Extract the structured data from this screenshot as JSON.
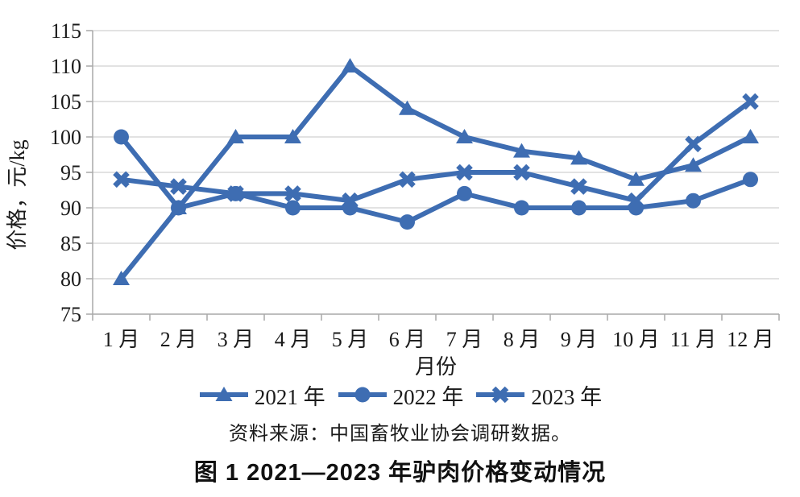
{
  "figure": {
    "caption": "图 1  2021—2023 年驴肉价格变动情况",
    "source_note": "资料来源：中国畜牧业协会调研数据。"
  },
  "chart_data": {
    "type": "line",
    "title": "",
    "xlabel": "月份",
    "ylabel": "价格，元/kg",
    "ylim": [
      75,
      115
    ],
    "ytick_step": 5,
    "grid": true,
    "legend_position": "bottom",
    "line_color": "#3e6db2",
    "categories": [
      "1 月",
      "2 月",
      "3 月",
      "4 月",
      "5 月",
      "6 月",
      "7 月",
      "8 月",
      "9 月",
      "10 月",
      "11 月",
      "12 月"
    ],
    "series": [
      {
        "name": "2021 年",
        "marker": "triangle",
        "values": [
          80,
          90,
          100,
          100,
          110,
          104,
          100,
          98,
          97,
          94,
          96,
          100
        ]
      },
      {
        "name": "2022 年",
        "marker": "circle",
        "values": [
          100,
          90,
          92,
          90,
          90,
          88,
          92,
          90,
          90,
          90,
          91,
          94
        ]
      },
      {
        "name": "2023 年",
        "marker": "x",
        "values": [
          94,
          93,
          92,
          92,
          91,
          94,
          95,
          95,
          93,
          91,
          99,
          105
        ]
      }
    ]
  }
}
